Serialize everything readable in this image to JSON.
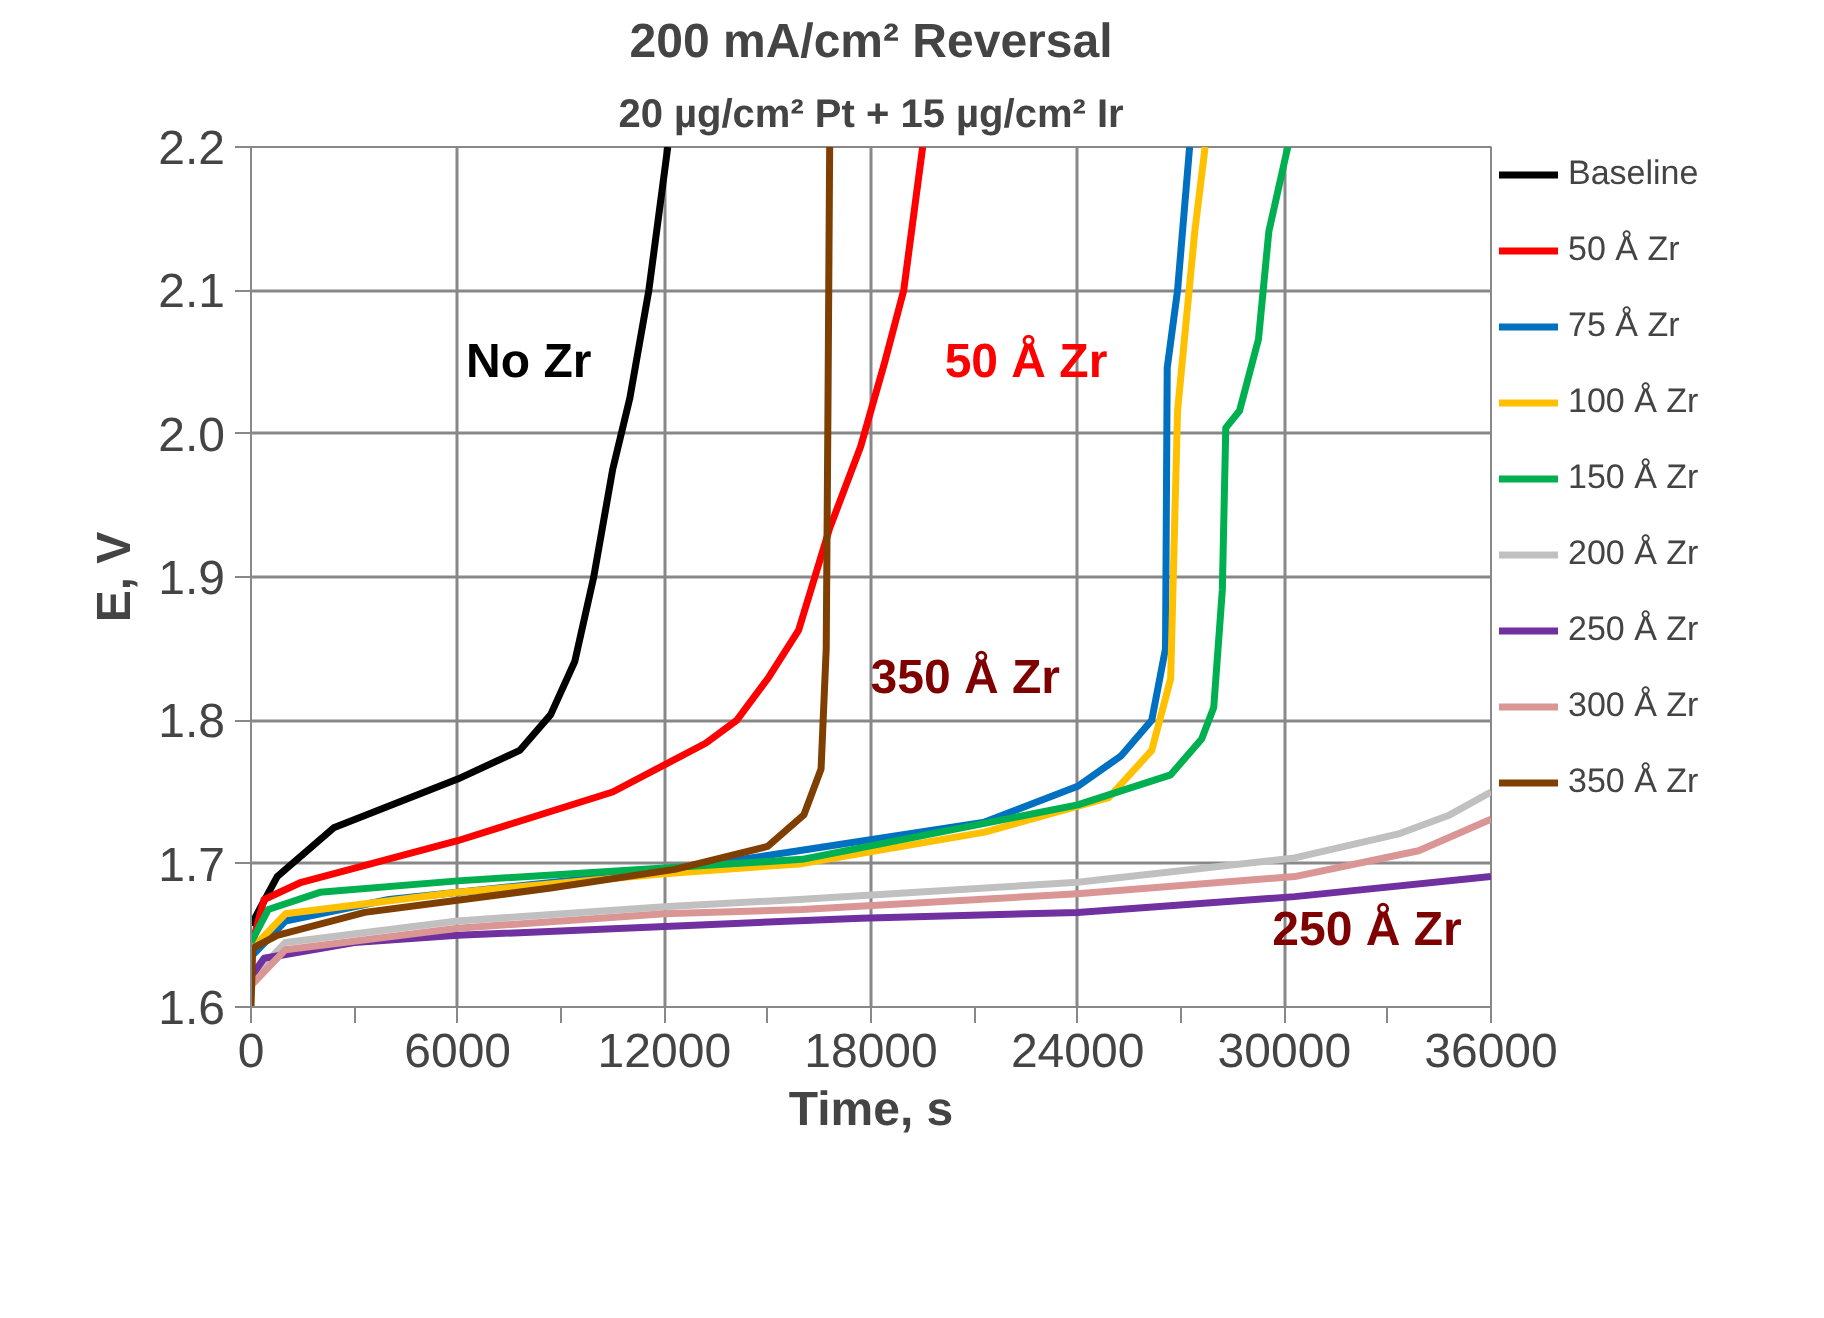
{
  "chart_data": {
    "type": "line",
    "title": "200 mA/cm² Reversal",
    "subtitle": "20 µg/cm² Pt + 15 µg/cm² Ir",
    "xlabel": "Time, s",
    "ylabel": "E, V",
    "xlim": [
      0,
      36000
    ],
    "xticks": [
      0,
      6000,
      12000,
      18000,
      24000,
      30000,
      36000
    ],
    "ylim": [
      1.6,
      2.2
    ],
    "yticks": [
      {
        "value": 1.6,
        "label": "1.6"
      },
      {
        "value": 1.7,
        "label": "1.7"
      },
      {
        "value": 1.8,
        "label": "1.8"
      },
      {
        "value": 1.9,
        "label": "1.9"
      },
      {
        "value": 2.0,
        "label": "2.0"
      },
      {
        "value": 2.1,
        "label": "2.1"
      },
      {
        "value": 2.2,
        "label": "2.2"
      }
    ],
    "grid": true,
    "legend": "right",
    "marker": "none",
    "line_style": "solid",
    "series": [
      {
        "name": "Baseline",
        "color": "#000000",
        "x": [
          0,
          760,
          2400,
          6000,
          7800,
          8700,
          9400,
          9950,
          10500,
          11000,
          11550,
          12100
        ],
        "values": [
          1.657,
          1.691,
          1.725,
          1.759,
          1.779,
          1.804,
          1.841,
          1.9,
          1.975,
          2.025,
          2.1,
          2.2
        ]
      },
      {
        "name": "50 Å Zr",
        "color": "#ff0000",
        "x": [
          0,
          380,
          1460,
          6000,
          10500,
          13200,
          14100,
          15000,
          15900,
          16800,
          17700,
          18400,
          18950,
          19500
        ],
        "values": [
          1.641,
          1.675,
          1.687,
          1.716,
          1.75,
          1.784,
          1.8,
          1.829,
          1.863,
          1.934,
          1.991,
          2.05,
          2.1,
          2.2
        ]
      },
      {
        "name": "75 Å Zr",
        "color": "#0070c0",
        "x": [
          0,
          1000,
          4000,
          12000,
          15900,
          21300,
          24000,
          25250,
          26150,
          26550,
          26600,
          26900,
          27250
        ],
        "values": [
          1.635,
          1.66,
          1.675,
          1.695,
          1.709,
          1.729,
          1.754,
          1.775,
          1.8,
          1.85,
          2.046,
          2.1,
          2.2
        ]
      },
      {
        "name": "100 Å Zr",
        "color": "#ffc000",
        "x": [
          0,
          1000,
          6000,
          12000,
          16000,
          21300,
          24900,
          26150,
          26700,
          26900,
          27400,
          27700
        ],
        "values": [
          1.64,
          1.665,
          1.68,
          1.693,
          1.7,
          1.722,
          1.746,
          1.779,
          1.829,
          2.016,
          2.141,
          2.2
        ]
      },
      {
        "name": "150 Å Zr",
        "color": "#00b050",
        "x": [
          0,
          500,
          2000,
          6000,
          12000,
          16000,
          24000,
          26700,
          27600,
          27950,
          28200,
          28300,
          28700,
          29250,
          29550,
          30100
        ],
        "values": [
          1.645,
          1.668,
          1.68,
          1.688,
          1.697,
          1.703,
          1.741,
          1.762,
          1.787,
          1.809,
          1.891,
          2.004,
          2.016,
          2.066,
          2.141,
          2.2
        ]
      },
      {
        "name": "200 Å Zr",
        "color": "#c0c0c0",
        "x": [
          0,
          1000,
          6000,
          12000,
          15900,
          24000,
          30300,
          33350,
          34800,
          36000
        ],
        "values": [
          1.62,
          1.645,
          1.66,
          1.67,
          1.675,
          1.687,
          1.704,
          1.721,
          1.734,
          1.75
        ]
      },
      {
        "name": "250 Å Zr",
        "color": "#7030a0",
        "x": [
          0,
          380,
          3000,
          6000,
          17700,
          24000,
          30300,
          36000
        ],
        "values": [
          1.621,
          1.634,
          1.645,
          1.65,
          1.662,
          1.666,
          1.677,
          1.691
        ]
      },
      {
        "name": "300 Å Zr",
        "color": "#d99694",
        "x": [
          0,
          1000,
          6000,
          12000,
          16000,
          24000,
          30300,
          33900,
          36000
        ],
        "values": [
          1.615,
          1.64,
          1.655,
          1.665,
          1.668,
          1.679,
          1.691,
          1.709,
          1.731
        ]
      },
      {
        "name": "350 Å Zr",
        "color": "#7f3f00",
        "x": [
          0,
          50,
          760,
          3300,
          8700,
          12300,
          15000,
          16050,
          16550,
          16700,
          16750,
          16800
        ],
        "values": [
          1.6,
          1.641,
          1.65,
          1.666,
          1.683,
          1.696,
          1.712,
          1.734,
          1.766,
          1.85,
          2.016,
          2.2
        ]
      }
    ],
    "annotations": [
      "No Zr",
      "50 Å Zr",
      "350 Å Zr",
      "250 Å Zr"
    ]
  }
}
